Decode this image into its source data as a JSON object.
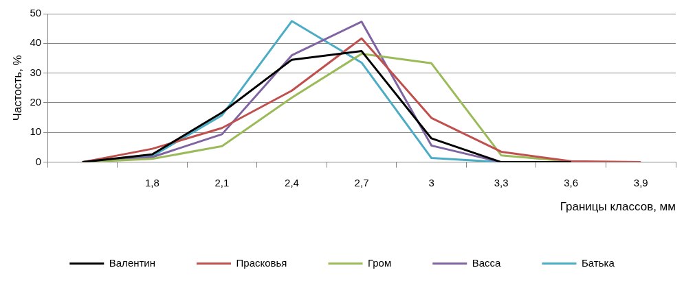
{
  "chart_data": {
    "type": "line",
    "xlabel": "Границы классов, мм",
    "ylabel": "Частость, %",
    "categories": [
      null,
      "1,8",
      "2,1",
      "2,4",
      "2,7",
      "3",
      "3,3",
      "3,6",
      "3,9"
    ],
    "series": [
      {
        "name": "Валентин",
        "color": "#000000",
        "values": [
          0,
          2.6,
          16.7,
          34.5,
          37.4,
          8.0,
          0,
          0,
          null
        ]
      },
      {
        "name": "Прасковья",
        "color": "#c0504d",
        "values": [
          0,
          4.5,
          11.5,
          24.1,
          41.7,
          14.9,
          3.5,
          0.3,
          0
        ]
      },
      {
        "name": "Гром",
        "color": "#9bbb59",
        "values": [
          0,
          1.1,
          5.4,
          21.7,
          36.5,
          33.3,
          2.3,
          0.2,
          null
        ]
      },
      {
        "name": "Васса",
        "color": "#8064a2",
        "values": [
          0,
          1.7,
          9.4,
          36.0,
          47.3,
          5.6,
          0,
          null,
          null
        ]
      },
      {
        "name": "Батька",
        "color": "#4bacc6",
        "values": [
          0,
          2.0,
          15.8,
          47.5,
          33.5,
          1.4,
          0,
          null,
          null
        ]
      }
    ],
    "ylim": [
      0,
      50
    ],
    "yticks": [
      0,
      10,
      20,
      30,
      40,
      50
    ],
    "grid": "y",
    "legend": "bottom",
    "marker": "none",
    "line_style": "solid"
  }
}
